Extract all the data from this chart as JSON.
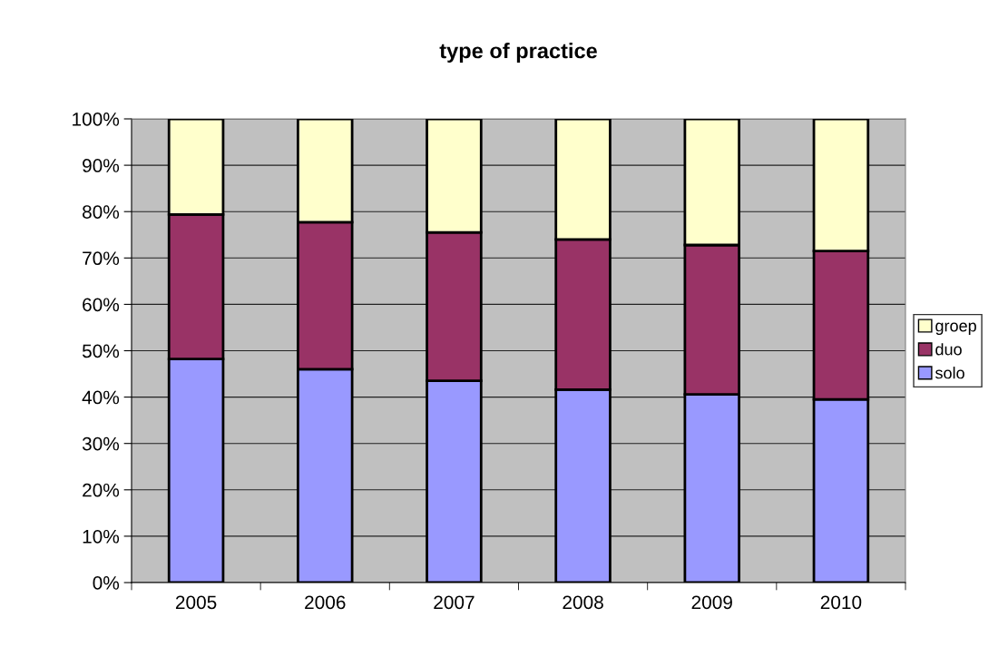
{
  "chart_data": {
    "type": "bar",
    "stacked": true,
    "title": "type of practice",
    "categories": [
      "2005",
      "2006",
      "2007",
      "2008",
      "2009",
      "2010"
    ],
    "series": [
      {
        "name": "solo",
        "color": "#9999ff",
        "values": [
          48.2,
          46.0,
          43.5,
          41.6,
          40.6,
          39.5
        ]
      },
      {
        "name": "duo",
        "color": "#993366",
        "values": [
          31.2,
          31.7,
          32.0,
          32.4,
          32.2,
          32.0
        ]
      },
      {
        "name": "groep",
        "color": "#ffffcc",
        "values": [
          20.6,
          22.3,
          24.5,
          26.0,
          27.2,
          28.5
        ]
      }
    ],
    "ylim": [
      0,
      100
    ],
    "yticks": [
      {
        "value": 0,
        "label": "0%"
      },
      {
        "value": 10,
        "label": "10%"
      },
      {
        "value": 20,
        "label": "20%"
      },
      {
        "value": 30,
        "label": "30%"
      },
      {
        "value": 40,
        "label": "40%"
      },
      {
        "value": 50,
        "label": "50%"
      },
      {
        "value": 60,
        "label": "60%"
      },
      {
        "value": 70,
        "label": "70%"
      },
      {
        "value": 80,
        "label": "80%"
      },
      {
        "value": 90,
        "label": "90%"
      },
      {
        "value": 100,
        "label": "100%"
      }
    ],
    "grid": "y",
    "legend": "right"
  }
}
